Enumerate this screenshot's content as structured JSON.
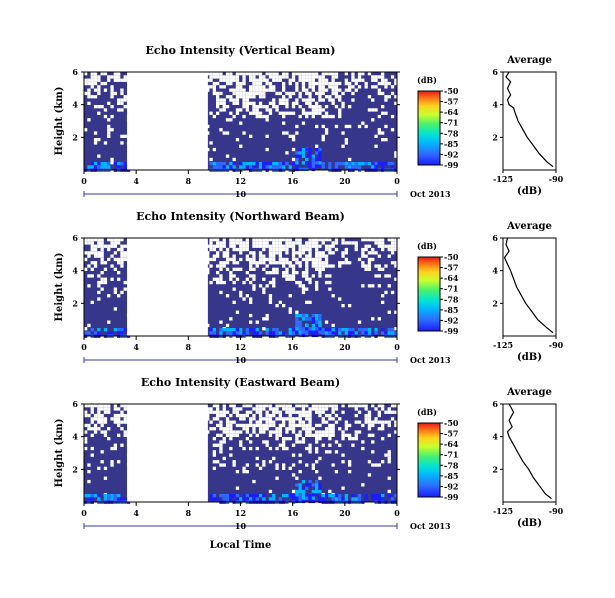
{
  "chart_data": [
    {
      "type": "heatmap",
      "title": "Echo Intensity (Vertical Beam)",
      "ylabel": "Height (km)",
      "yticks": [
        "2",
        "4",
        "6"
      ],
      "ylim": [
        0,
        6
      ],
      "xticks": [
        "0",
        "4",
        "8",
        "12",
        "16",
        "20",
        "0"
      ],
      "xlim_hours": [
        0,
        24
      ],
      "date_ticks": [
        "10"
      ],
      "date_unit": "Oct 2013",
      "data_gap_hours": [
        [
          3.3,
          9.5
        ]
      ],
      "colorbar": {
        "unit": "(dB)",
        "ticks": [
          "-50",
          "-57",
          "-64",
          "-71",
          "-78",
          "-85",
          "-92",
          "-99"
        ],
        "range": [
          -99,
          -50
        ]
      },
      "average_profile": {
        "title": "Average",
        "xlabel": "(dB)",
        "xticks": [
          "-125",
          "-90"
        ],
        "yticks": [
          "2",
          "4",
          "6"
        ],
        "xlim": [
          -125,
          -90
        ],
        "height_km": [
          0.2,
          0.5,
          1.0,
          1.5,
          2.0,
          2.5,
          3.0,
          3.5,
          3.8,
          4.0,
          4.3,
          4.6,
          5.0,
          5.4,
          5.7,
          6.0
        ],
        "value_db": [
          -92,
          -96,
          -101,
          -105,
          -109,
          -112,
          -115,
          -117,
          -118,
          -121,
          -122,
          -120,
          -122,
          -120,
          -123,
          -121
        ]
      }
    },
    {
      "type": "heatmap",
      "title": "Echo Intensity (Northward Beam)",
      "ylabel": "Height (km)",
      "yticks": [
        "2",
        "4",
        "6"
      ],
      "ylim": [
        0,
        6
      ],
      "xticks": [
        "0",
        "4",
        "8",
        "12",
        "16",
        "20",
        "0"
      ],
      "xlim_hours": [
        0,
        24
      ],
      "date_ticks": [
        "10"
      ],
      "date_unit": "Oct 2013",
      "data_gap_hours": [
        [
          3.3,
          9.5
        ]
      ],
      "colorbar": {
        "unit": "(dB)",
        "ticks": [
          "-50",
          "-57",
          "-64",
          "-71",
          "-78",
          "-85",
          "-92",
          "-99"
        ],
        "range": [
          -99,
          -50
        ]
      },
      "average_profile": {
        "title": "Average",
        "xlabel": "(dB)",
        "xticks": [
          "-125",
          "-90"
        ],
        "yticks": [
          "2",
          "4",
          "6"
        ],
        "xlim": [
          -125,
          -90
        ],
        "height_km": [
          0.2,
          0.5,
          1.0,
          1.5,
          2.0,
          2.5,
          3.0,
          3.5,
          4.0,
          4.4,
          4.8,
          5.2,
          5.6,
          6.0
        ],
        "value_db": [
          -92,
          -96,
          -102,
          -106,
          -110,
          -113,
          -116,
          -118,
          -120,
          -122,
          -124,
          -121,
          -123,
          -122
        ]
      }
    },
    {
      "type": "heatmap",
      "title": "Echo Intensity (Eastward Beam)",
      "ylabel": "Height (km)",
      "yticks": [
        "2",
        "4",
        "6"
      ],
      "ylim": [
        0,
        6
      ],
      "xticks": [
        "0",
        "4",
        "8",
        "12",
        "16",
        "20",
        "0"
      ],
      "xlim_hours": [
        0,
        24
      ],
      "date_ticks": [
        "10"
      ],
      "date_unit": "Oct 2013",
      "data_gap_hours": [
        [
          3.3,
          9.5
        ]
      ],
      "colorbar": {
        "unit": "(dB)",
        "ticks": [
          "-50",
          "-57",
          "-64",
          "-71",
          "-78",
          "-85",
          "-92",
          "-99"
        ],
        "range": [
          -99,
          -50
        ]
      },
      "average_profile": {
        "title": "Average",
        "xlabel": "(dB)",
        "xticks": [
          "-125",
          "-90"
        ],
        "yticks": [
          "2",
          "4",
          "6"
        ],
        "xlim": [
          -125,
          -90
        ],
        "height_km": [
          0.2,
          0.5,
          1.0,
          1.5,
          2.0,
          2.5,
          3.0,
          3.5,
          4.0,
          4.3,
          4.6,
          5.0,
          5.5,
          6.0
        ],
        "value_db": [
          -93,
          -97,
          -101,
          -105,
          -108,
          -112,
          -115,
          -118,
          -121,
          -122,
          -119,
          -121,
          -118,
          -121
        ]
      }
    }
  ],
  "shared_xlabel": "Local Time",
  "colors": {
    "background": "#36368a",
    "colormap": [
      "#1c1cff",
      "#2f6bff",
      "#00b7ff",
      "#00e6d2",
      "#48f06e",
      "#c8ff2d",
      "#ffd21e",
      "#ff7a14",
      "#e61a1a"
    ]
  }
}
